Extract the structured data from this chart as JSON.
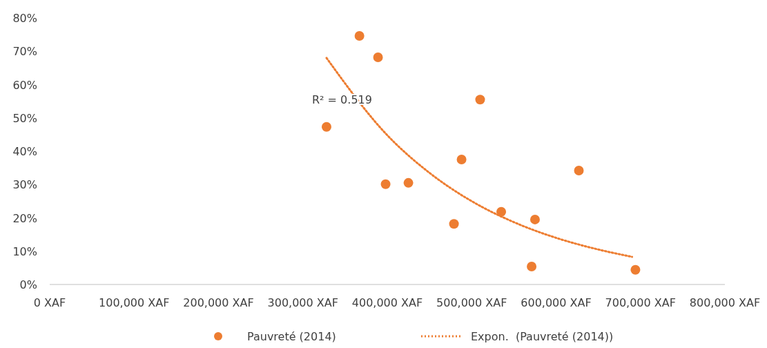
{
  "chart_data": {
    "type": "scatter",
    "xlim": [
      0,
      800000
    ],
    "ylim": [
      0,
      80
    ],
    "xticks": [
      {
        "value": 0,
        "label": "0 XAF"
      },
      {
        "value": 100000,
        "label": "100,000 XAF"
      },
      {
        "value": 200000,
        "label": "200,000 XAF"
      },
      {
        "value": 300000,
        "label": "300,000 XAF"
      },
      {
        "value": 400000,
        "label": "400,000 XAF"
      },
      {
        "value": 500000,
        "label": "500,000 XAF"
      },
      {
        "value": 600000,
        "label": "600,000 XAF"
      },
      {
        "value": 700000,
        "label": "700,000 XAF"
      },
      {
        "value": 800000,
        "label": "800,000 XAF"
      }
    ],
    "yticks": [
      {
        "value": 0,
        "label": "0%"
      },
      {
        "value": 10,
        "label": "10%"
      },
      {
        "value": 20,
        "label": "20%"
      },
      {
        "value": 30,
        "label": "30%"
      },
      {
        "value": 40,
        "label": "40%"
      },
      {
        "value": 50,
        "label": "50%"
      },
      {
        "value": 60,
        "label": "60%"
      },
      {
        "value": 70,
        "label": "70%"
      },
      {
        "value": 80,
        "label": "80%"
      }
    ],
    "grid": false,
    "legend": "bottom",
    "annotations": [
      "R² = 0.519"
    ],
    "series": [
      {
        "name": "Pauvreté (2014)",
        "marker": "circle",
        "color": "#ed7d31",
        "x": [
          328000,
          367000,
          389000,
          398000,
          425000,
          479000,
          488000,
          510000,
          535000,
          571000,
          575000,
          627000,
          694000
        ],
        "values": [
          47.3,
          74.6,
          68.2,
          30.1,
          30.5,
          18.2,
          37.5,
          55.5,
          21.8,
          5.4,
          19.5,
          34.2,
          4.4
        ]
      },
      {
        "name": "Expon.  (Pauvreté (2014))",
        "type": "line",
        "marker": "none",
        "line_style": "dotted",
        "color": "#ed7d31",
        "x": [
          328000,
          400000,
          450000,
          500000,
          550000,
          600000,
          650000,
          690000
        ],
        "values": [
          68,
          44.8,
          33.5,
          25,
          18.7,
          14,
          10.5,
          8.3
        ]
      }
    ]
  }
}
